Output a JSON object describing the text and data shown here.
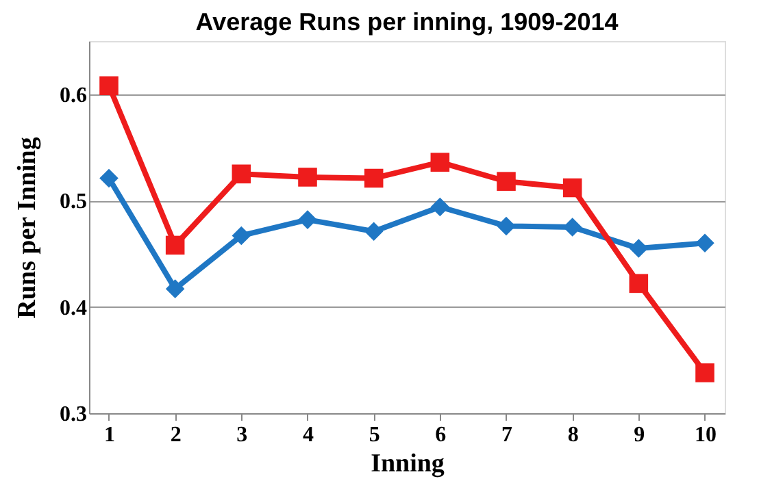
{
  "chart_data": {
    "type": "line",
    "title": "Average Runs per inning, 1909-2014",
    "xlabel": "Inning",
    "ylabel": "Runs per Inning",
    "categories": [
      "1",
      "2",
      "3",
      "4",
      "5",
      "6",
      "7",
      "8",
      "9",
      "10"
    ],
    "series": [
      {
        "color": "#1f77c4",
        "marker": "diamond",
        "values": [
          0.521,
          0.417,
          0.467,
          0.482,
          0.471,
          0.494,
          0.476,
          0.475,
          0.455,
          0.46
        ]
      },
      {
        "color": "#ee1c1c",
        "marker": "square",
        "values": [
          0.608,
          0.458,
          0.525,
          0.522,
          0.521,
          0.536,
          0.518,
          0.512,
          0.422,
          0.338
        ]
      }
    ],
    "ylim": [
      0.3,
      0.65
    ],
    "yticks": [
      0.3,
      0.4,
      0.5,
      0.6
    ],
    "grid": "y",
    "legend": false,
    "line_style": "solid"
  }
}
